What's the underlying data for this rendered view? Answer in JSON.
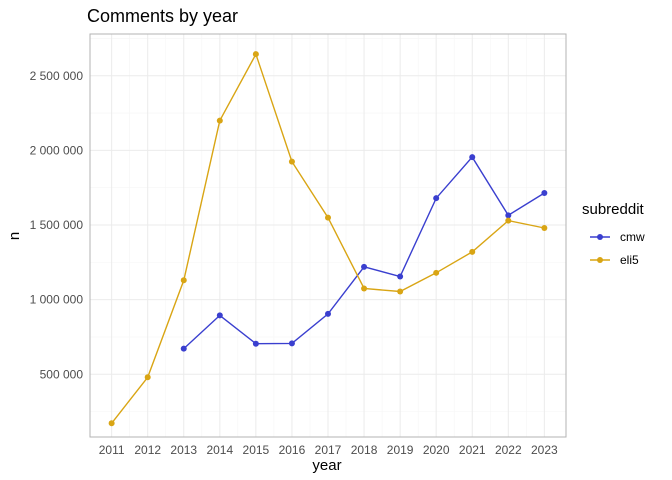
{
  "chart_data": {
    "type": "line",
    "title": "Comments by year",
    "xlabel": "year",
    "ylabel": "n",
    "x": [
      2011,
      2012,
      2013,
      2014,
      2015,
      2016,
      2017,
      2018,
      2019,
      2020,
      2021,
      2022,
      2023
    ],
    "x_tick_labels": [
      "2011",
      "2012",
      "2013",
      "2014",
      "2015",
      "2016",
      "2017",
      "2018",
      "2019",
      "2020",
      "2021",
      "2022",
      "2023"
    ],
    "y_ticks": [
      500000,
      1000000,
      1500000,
      2000000,
      2500000
    ],
    "y_tick_labels": [
      "500 000",
      "1 000 000",
      "1 500 000",
      "2 000 000",
      "2 500 000"
    ],
    "ylim": [
      80000,
      2780000
    ],
    "grid": true,
    "legend": {
      "title": "subreddit",
      "placement": "right"
    },
    "series": [
      {
        "name": "cmw",
        "color": "#3a3fcf",
        "values": [
          null,
          null,
          672000,
          895000,
          705000,
          707000,
          905000,
          1220000,
          1155000,
          1680000,
          1955000,
          1565000,
          1715000
        ]
      },
      {
        "name": "eli5",
        "color": "#d9a514",
        "values": [
          172000,
          480000,
          1130000,
          2200000,
          2645000,
          1925000,
          1550000,
          1075000,
          1055000,
          1180000,
          1320000,
          1530000,
          1480000
        ]
      }
    ]
  }
}
